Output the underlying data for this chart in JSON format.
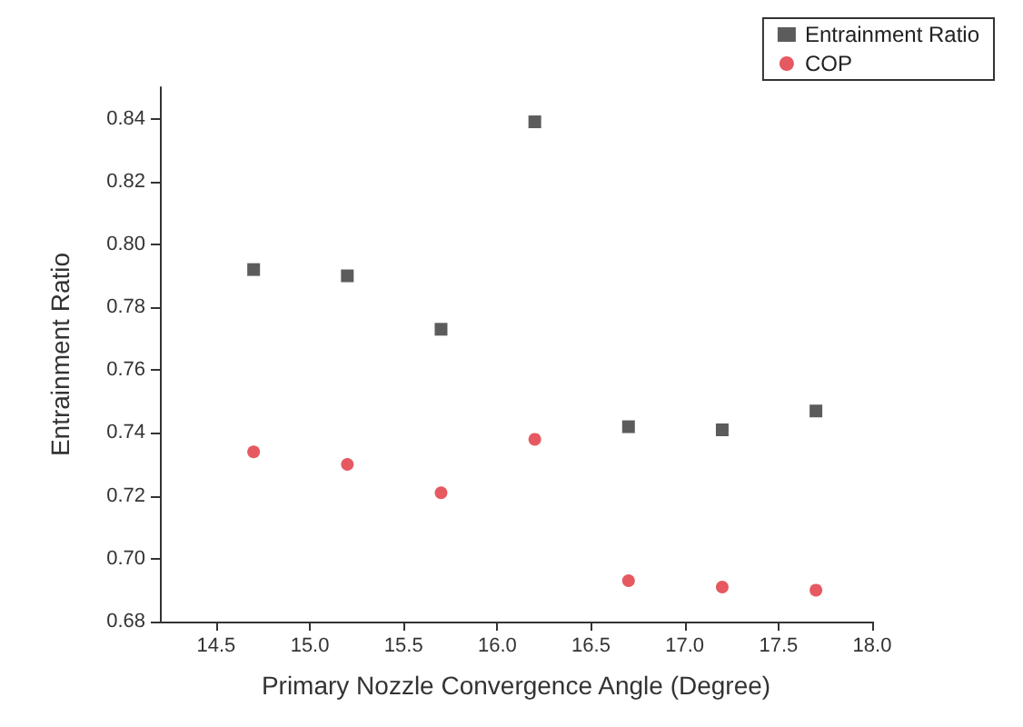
{
  "chart_data": {
    "type": "scatter",
    "xlabel": "Primary Nozzle Convergence Angle (Degree)",
    "ylabel": "Entrainment Ratio",
    "x": [
      14.7,
      15.2,
      15.7,
      16.2,
      16.7,
      17.2,
      17.7
    ],
    "series": [
      {
        "name": "Entrainment Ratio",
        "color": "#333333",
        "marker": "square",
        "values": [
          0.792,
          0.79,
          0.773,
          0.839,
          0.742,
          0.741,
          0.747
        ]
      },
      {
        "name": "COP",
        "color": "#e0303a",
        "marker": "circle",
        "values": [
          0.734,
          0.73,
          0.721,
          0.738,
          0.693,
          0.691,
          0.69
        ]
      }
    ],
    "xlim": [
      14.2,
      18.0
    ],
    "xticks": [
      {
        "value": 14.5,
        "label": "14.5"
      },
      {
        "value": 15,
        "label": "15.0"
      },
      {
        "value": 15.5,
        "label": "15.5"
      },
      {
        "value": 16,
        "label": "16.0"
      },
      {
        "value": 16.5,
        "label": "16.5"
      },
      {
        "value": 17,
        "label": "17.0"
      },
      {
        "value": 17.5,
        "label": "17.5"
      },
      {
        "value": 18,
        "label": "18.0"
      }
    ],
    "ylim": [
      0.68,
      0.85
    ],
    "yticks": [
      0.68,
      {
        "value": 0.7,
        "label": "0.70"
      },
      0.72,
      0.74,
      0.76,
      0.78,
      {
        "value": 0.8,
        "label": "0.80"
      },
      0.82,
      0.84
    ],
    "grid": false,
    "legend": "top right"
  }
}
